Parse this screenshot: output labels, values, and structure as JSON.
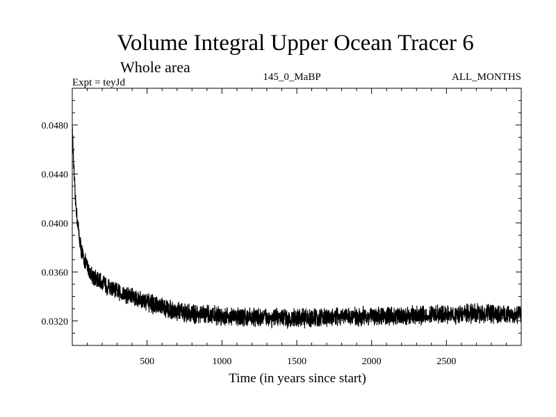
{
  "chart_data": {
    "type": "line",
    "title": "Volume Integral Upper Ocean Tracer 6",
    "subtitle": "Whole area",
    "annotations": {
      "experiment": "Expt = teyJd",
      "period": "145_0_MaBP",
      "months": "ALL_MONTHS"
    },
    "xlabel": "Time (in years since start)",
    "ylabel": "",
    "xlim": [
      0,
      3000
    ],
    "ylim": [
      0.03,
      0.051
    ],
    "x_ticks": [
      500,
      1000,
      1500,
      2000,
      2500
    ],
    "x_tick_labels": [
      "500",
      "1000",
      "1500",
      "2000",
      "2500"
    ],
    "y_ticks": [
      0.032,
      0.036,
      0.04,
      0.044,
      0.048
    ],
    "y_tick_labels": [
      "0.0320",
      "0.0360",
      "0.0400",
      "0.0440",
      "0.0480"
    ],
    "grid": false,
    "legend": "none",
    "series": [
      {
        "x": [
          0,
          10,
          20,
          40,
          60,
          80,
          100,
          130,
          160,
          200,
          250,
          300,
          350,
          400,
          500,
          600,
          700,
          800,
          900,
          1000,
          1200,
          1500,
          1800,
          2000,
          2200,
          2500,
          2700,
          3000
        ],
        "values": [
          0.0478,
          0.0445,
          0.042,
          0.0395,
          0.0378,
          0.037,
          0.0364,
          0.0358,
          0.0354,
          0.0351,
          0.0347,
          0.0344,
          0.0342,
          0.034,
          0.0335,
          0.0331,
          0.0328,
          0.0326,
          0.0325,
          0.0324,
          0.0323,
          0.0322,
          0.0323,
          0.0324,
          0.0324,
          0.0325,
          0.0326,
          0.0325
        ],
        "noise_amplitude": 0.0006,
        "color": "#000000"
      }
    ]
  }
}
